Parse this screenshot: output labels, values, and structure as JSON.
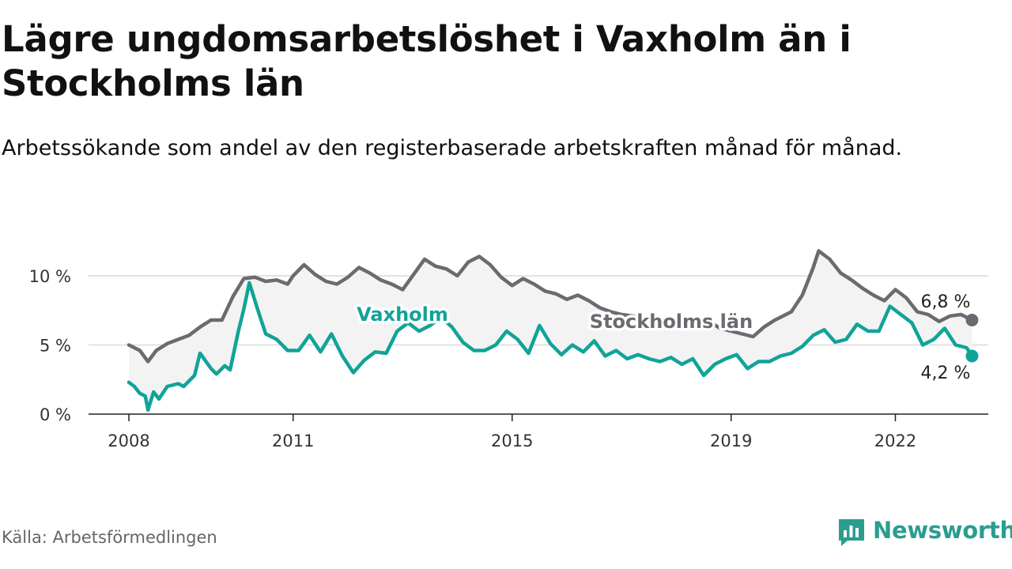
{
  "title": "Lägre ungdomsarbetslöshet i Vaxholm än i Stockholms län",
  "subtitle": "Arbetssökande som andel av den registerbaserade arbetskraften månad för månad.",
  "source": "Källa: Arbetsförmedlingen",
  "brand": "Newsworthy",
  "colors": {
    "vaxholm": "#11a398",
    "stockholm": "#6b6a70",
    "grid": "#d9d9d9",
    "band": "#f3f3f3",
    "brand": "#2a9d8f"
  },
  "chart_data": {
    "type": "line",
    "title": "Lägre ungdomsarbetslöshet i Vaxholm än i Stockholms län",
    "ylabel": "",
    "xlabel": "",
    "xlim": [
      2008,
      2023.9
    ],
    "ylim": [
      0,
      12
    ],
    "y_ticks": [
      0,
      5,
      10
    ],
    "y_tick_labels": [
      "0 %",
      "5 %",
      "10 %"
    ],
    "x_ticks": [
      2008,
      2011,
      2015,
      2019,
      2022
    ],
    "x_tick_labels": [
      "2008",
      "2011",
      "2015",
      "2019",
      "2022"
    ],
    "grid": true,
    "series": [
      {
        "name": "Stockholms län",
        "label": "Stockholms län",
        "end_label": "6,8 %",
        "points": [
          [
            2008.0,
            5.0
          ],
          [
            2008.2,
            4.6
          ],
          [
            2008.35,
            3.8
          ],
          [
            2008.5,
            4.6
          ],
          [
            2008.7,
            5.1
          ],
          [
            2008.9,
            5.4
          ],
          [
            2009.1,
            5.7
          ],
          [
            2009.3,
            6.3
          ],
          [
            2009.5,
            6.8
          ],
          [
            2009.7,
            6.8
          ],
          [
            2009.9,
            8.5
          ],
          [
            2010.1,
            9.8
          ],
          [
            2010.3,
            9.9
          ],
          [
            2010.5,
            9.6
          ],
          [
            2010.7,
            9.7
          ],
          [
            2010.9,
            9.4
          ],
          [
            2011.0,
            10.0
          ],
          [
            2011.2,
            10.8
          ],
          [
            2011.4,
            10.1
          ],
          [
            2011.6,
            9.6
          ],
          [
            2011.8,
            9.4
          ],
          [
            2012.0,
            9.9
          ],
          [
            2012.2,
            10.6
          ],
          [
            2012.4,
            10.2
          ],
          [
            2012.6,
            9.7
          ],
          [
            2012.8,
            9.4
          ],
          [
            2013.0,
            9.0
          ],
          [
            2013.2,
            10.1
          ],
          [
            2013.4,
            11.2
          ],
          [
            2013.6,
            10.7
          ],
          [
            2013.8,
            10.5
          ],
          [
            2014.0,
            10.0
          ],
          [
            2014.2,
            11.0
          ],
          [
            2014.4,
            11.4
          ],
          [
            2014.6,
            10.8
          ],
          [
            2014.8,
            9.9
          ],
          [
            2015.0,
            9.3
          ],
          [
            2015.2,
            9.8
          ],
          [
            2015.4,
            9.4
          ],
          [
            2015.6,
            8.9
          ],
          [
            2015.8,
            8.7
          ],
          [
            2016.0,
            8.3
          ],
          [
            2016.2,
            8.6
          ],
          [
            2016.4,
            8.2
          ],
          [
            2016.6,
            7.7
          ],
          [
            2016.8,
            7.4
          ],
          [
            2017.0,
            7.2
          ],
          [
            2017.2,
            7.1
          ],
          [
            2017.4,
            7.0
          ],
          [
            2017.6,
            6.8
          ],
          [
            2017.8,
            6.6
          ],
          [
            2018.0,
            6.6
          ],
          [
            2018.2,
            6.4
          ],
          [
            2018.4,
            6.5
          ],
          [
            2018.6,
            6.7
          ],
          [
            2018.8,
            6.2
          ],
          [
            2019.0,
            6.0
          ],
          [
            2019.2,
            5.8
          ],
          [
            2019.4,
            5.6
          ],
          [
            2019.6,
            6.3
          ],
          [
            2019.8,
            6.8
          ],
          [
            2019.9,
            7.0
          ],
          [
            2020.1,
            7.4
          ],
          [
            2020.3,
            8.6
          ],
          [
            2020.5,
            10.6
          ],
          [
            2020.6,
            11.8
          ],
          [
            2020.8,
            11.2
          ],
          [
            2021.0,
            10.2
          ],
          [
            2021.2,
            9.7
          ],
          [
            2021.4,
            9.1
          ],
          [
            2021.6,
            8.6
          ],
          [
            2021.8,
            8.2
          ],
          [
            2022.0,
            9.0
          ],
          [
            2022.2,
            8.4
          ],
          [
            2022.4,
            7.4
          ],
          [
            2022.6,
            7.2
          ],
          [
            2022.8,
            6.7
          ],
          [
            2023.0,
            7.1
          ],
          [
            2023.2,
            7.2
          ],
          [
            2023.4,
            6.8
          ]
        ]
      },
      {
        "name": "Vaxholm",
        "label": "Vaxholm",
        "end_label": "4,2 %",
        "points": [
          [
            2008.0,
            2.3
          ],
          [
            2008.1,
            2.0
          ],
          [
            2008.2,
            1.5
          ],
          [
            2008.3,
            1.3
          ],
          [
            2008.35,
            0.3
          ],
          [
            2008.45,
            1.6
          ],
          [
            2008.55,
            1.1
          ],
          [
            2008.7,
            2.0
          ],
          [
            2008.9,
            2.2
          ],
          [
            2009.0,
            2.0
          ],
          [
            2009.2,
            2.8
          ],
          [
            2009.3,
            4.4
          ],
          [
            2009.5,
            3.3
          ],
          [
            2009.6,
            2.9
          ],
          [
            2009.75,
            3.5
          ],
          [
            2009.85,
            3.2
          ],
          [
            2010.0,
            6.0
          ],
          [
            2010.1,
            7.6
          ],
          [
            2010.2,
            9.5
          ],
          [
            2010.35,
            7.6
          ],
          [
            2010.5,
            5.8
          ],
          [
            2010.7,
            5.4
          ],
          [
            2010.9,
            4.6
          ],
          [
            2011.1,
            4.6
          ],
          [
            2011.3,
            5.7
          ],
          [
            2011.5,
            4.5
          ],
          [
            2011.7,
            5.8
          ],
          [
            2011.9,
            4.2
          ],
          [
            2012.1,
            3.0
          ],
          [
            2012.3,
            3.9
          ],
          [
            2012.5,
            4.5
          ],
          [
            2012.7,
            4.4
          ],
          [
            2012.9,
            6.0
          ],
          [
            2013.1,
            6.6
          ],
          [
            2013.3,
            6.0
          ],
          [
            2013.5,
            6.4
          ],
          [
            2013.7,
            7.0
          ],
          [
            2013.9,
            6.3
          ],
          [
            2014.1,
            5.2
          ],
          [
            2014.3,
            4.6
          ],
          [
            2014.5,
            4.6
          ],
          [
            2014.7,
            5.0
          ],
          [
            2014.9,
            6.0
          ],
          [
            2015.1,
            5.4
          ],
          [
            2015.3,
            4.4
          ],
          [
            2015.5,
            6.4
          ],
          [
            2015.7,
            5.1
          ],
          [
            2015.9,
            4.3
          ],
          [
            2016.1,
            5.0
          ],
          [
            2016.3,
            4.5
          ],
          [
            2016.5,
            5.3
          ],
          [
            2016.7,
            4.2
          ],
          [
            2016.9,
            4.6
          ],
          [
            2017.1,
            4.0
          ],
          [
            2017.3,
            4.3
          ],
          [
            2017.5,
            4.0
          ],
          [
            2017.7,
            3.8
          ],
          [
            2017.9,
            4.1
          ],
          [
            2018.1,
            3.6
          ],
          [
            2018.3,
            4.0
          ],
          [
            2018.5,
            2.8
          ],
          [
            2018.7,
            3.6
          ],
          [
            2018.9,
            4.0
          ],
          [
            2019.1,
            4.3
          ],
          [
            2019.3,
            3.3
          ],
          [
            2019.5,
            3.8
          ],
          [
            2019.7,
            3.8
          ],
          [
            2019.9,
            4.2
          ],
          [
            2020.1,
            4.4
          ],
          [
            2020.3,
            4.9
          ],
          [
            2020.5,
            5.7
          ],
          [
            2020.7,
            6.1
          ],
          [
            2020.9,
            5.2
          ],
          [
            2021.1,
            5.4
          ],
          [
            2021.3,
            6.5
          ],
          [
            2021.5,
            6.0
          ],
          [
            2021.7,
            6.0
          ],
          [
            2021.9,
            7.8
          ],
          [
            2022.1,
            7.2
          ],
          [
            2022.3,
            6.6
          ],
          [
            2022.5,
            5.0
          ],
          [
            2022.7,
            5.4
          ],
          [
            2022.9,
            6.2
          ],
          [
            2023.1,
            5.0
          ],
          [
            2023.3,
            4.8
          ],
          [
            2023.4,
            4.2
          ]
        ]
      }
    ]
  }
}
